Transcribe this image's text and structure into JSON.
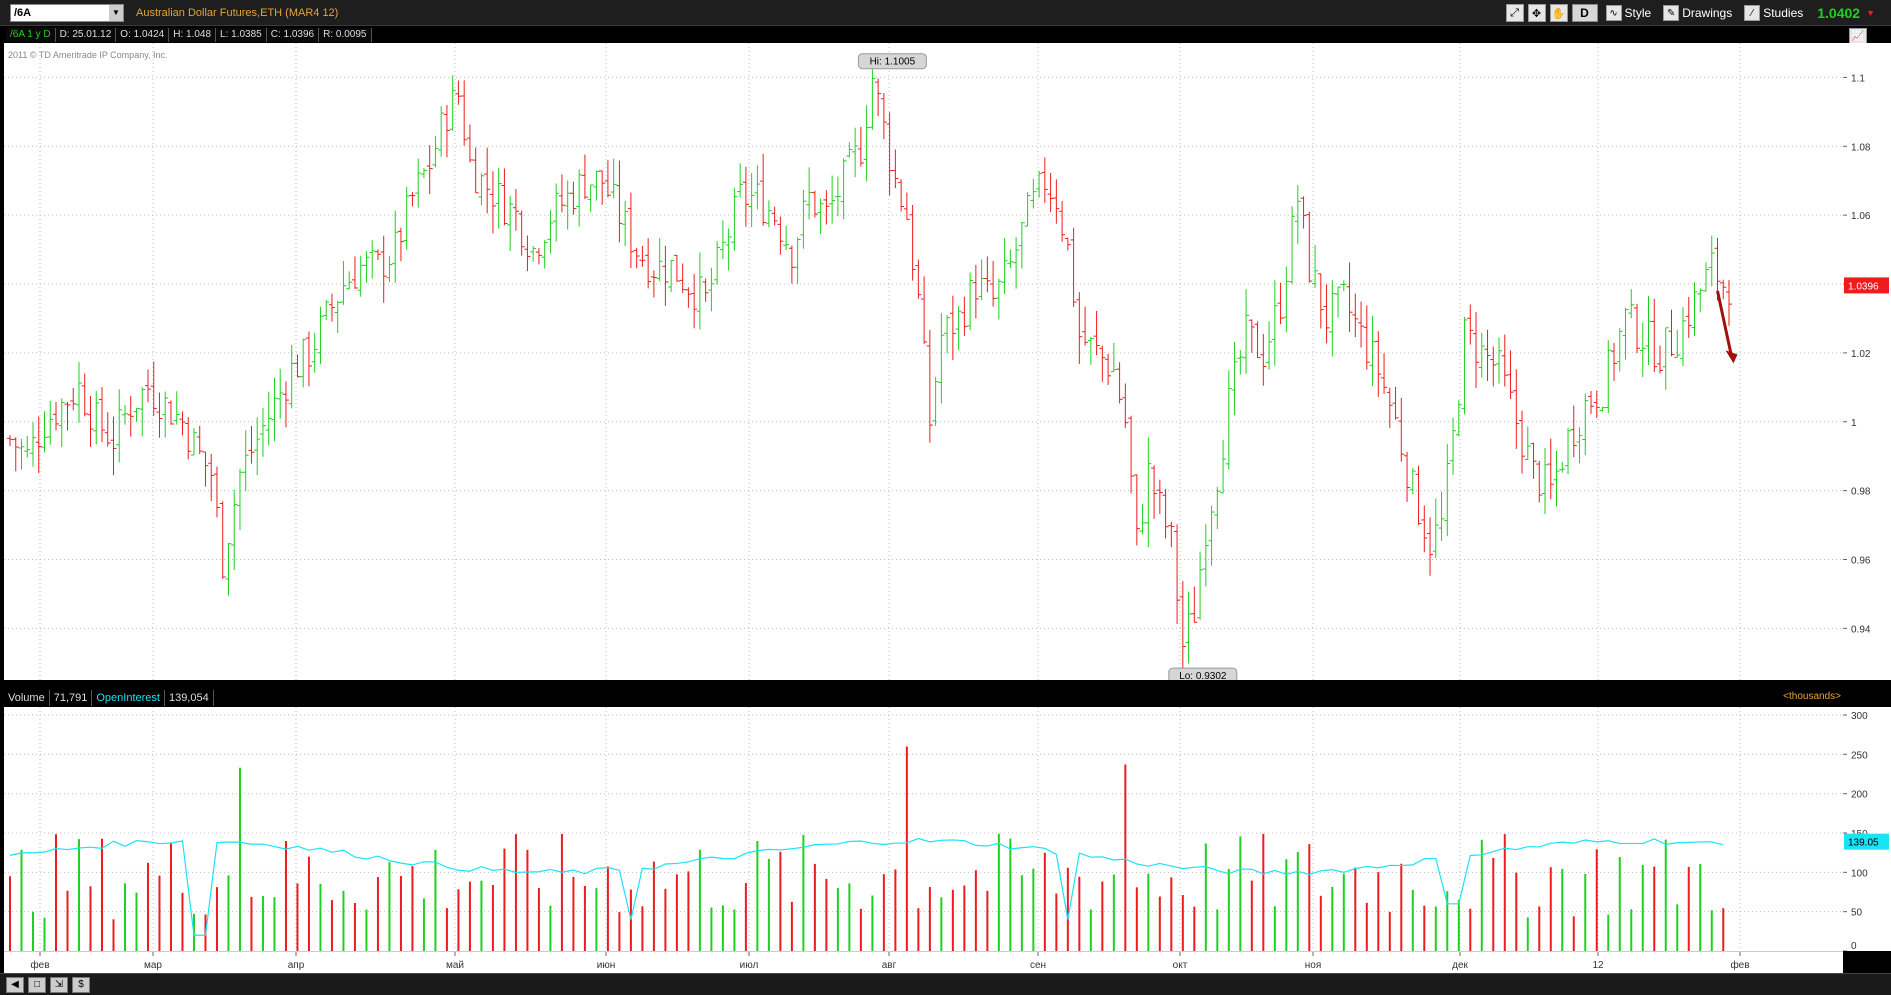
{
  "toolbar": {
    "symbol": "/6A",
    "description": "Australian Dollar Futures,ETH (MAR4 12)",
    "aggregation": "D",
    "style_label": "Style",
    "drawings_label": "Drawings",
    "studies_label": "Studies",
    "last_price": "1.0402",
    "price_change_icon": "down-arrow-icon"
  },
  "infobar": {
    "symbol_period": "/6A 1 y D",
    "date": "D: 25.01.12",
    "open": "O: 1.0424",
    "high": "H: 1.048",
    "low": "L: 1.0385",
    "close": "C: 1.0396",
    "range": "R: 0.0095"
  },
  "copyright": "2011 © TD Ameritrade IP Company, Inc.",
  "volume_header": {
    "volume_label": "Volume",
    "volume_value": "71,791",
    "oi_label": "OpenInterest",
    "oi_value": "139,054",
    "units": "<thousands>"
  },
  "colors": {
    "up": "#1fd11f",
    "down": "#ee1c1c",
    "oi_line": "#19e3f5",
    "grid": "#bdbdbd",
    "arrow": "#a10f0f"
  },
  "chart_data": [
    {
      "type": "ohlc",
      "title": "",
      "ylim": [
        0.925,
        1.11
      ],
      "y_ticks": [
        "1.1",
        "1.08",
        "1.06",
        "1.04",
        "1.02",
        "1",
        "0.98",
        "0.96",
        "0.94"
      ],
      "current_price_label": "1.0396",
      "hi_label": "Hi: 1.1005",
      "lo_label": "Lo: 0.9302",
      "x_labels": [
        "фев",
        "мар",
        "апр",
        "май",
        "июн",
        "июл",
        "авг",
        "сен",
        "окт",
        "ноя",
        "дек",
        "12",
        "фев"
      ],
      "anchors": [
        [
          0,
          0.995
        ],
        [
          3,
          0.99
        ],
        [
          6,
          1.0
        ],
        [
          9,
          1.005
        ],
        [
          12,
          1.01
        ],
        [
          15,
          1.0
        ],
        [
          18,
          0.995
        ],
        [
          21,
          1.005
        ],
        [
          24,
          1.01
        ],
        [
          27,
          1.005
        ],
        [
          30,
          1.0
        ],
        [
          33,
          0.99
        ],
        [
          35,
          0.985
        ],
        [
          37,
          0.96
        ],
        [
          40,
          0.985
        ],
        [
          43,
          0.995
        ],
        [
          46,
          1.005
        ],
        [
          49,
          1.015
        ],
        [
          52,
          1.02
        ],
        [
          55,
          1.03
        ],
        [
          58,
          1.04
        ],
        [
          61,
          1.045
        ],
        [
          64,
          1.045
        ],
        [
          67,
          1.05
        ],
        [
          70,
          1.065
        ],
        [
          73,
          1.075
        ],
        [
          76,
          1.09
        ],
        [
          78,
          1.095
        ],
        [
          80,
          1.075
        ],
        [
          82,
          1.07
        ],
        [
          85,
          1.065
        ],
        [
          88,
          1.06
        ],
        [
          91,
          1.05
        ],
        [
          94,
          1.06
        ],
        [
          97,
          1.065
        ],
        [
          100,
          1.07
        ],
        [
          103,
          1.07
        ],
        [
          106,
          1.06
        ],
        [
          109,
          1.05
        ],
        [
          112,
          1.045
        ],
        [
          115,
          1.045
        ],
        [
          118,
          1.04
        ],
        [
          121,
          1.035
        ],
        [
          124,
          1.05
        ],
        [
          127,
          1.065
        ],
        [
          130,
          1.065
        ],
        [
          133,
          1.06
        ],
        [
          136,
          1.05
        ],
        [
          139,
          1.065
        ],
        [
          142,
          1.06
        ],
        [
          145,
          1.07
        ],
        [
          148,
          1.08
        ],
        [
          150,
          1.1
        ],
        [
          152,
          1.085
        ],
        [
          154,
          1.07
        ],
        [
          156,
          1.06
        ],
        [
          158,
          1.035
        ],
        [
          160,
          1.0
        ],
        [
          162,
          1.025
        ],
        [
          165,
          1.03
        ],
        [
          168,
          1.04
        ],
        [
          171,
          1.035
        ],
        [
          174,
          1.045
        ],
        [
          177,
          1.06
        ],
        [
          180,
          1.07
        ],
        [
          182,
          1.065
        ],
        [
          184,
          1.05
        ],
        [
          186,
          1.025
        ],
        [
          189,
          1.02
        ],
        [
          192,
          1.015
        ],
        [
          194,
          1.0
        ],
        [
          196,
          0.965
        ],
        [
          198,
          0.985
        ],
        [
          200,
          0.975
        ],
        [
          202,
          0.965
        ],
        [
          204,
          0.935
        ],
        [
          206,
          0.945
        ],
        [
          208,
          0.97
        ],
        [
          210,
          0.985
        ],
        [
          212,
          1.005
        ],
        [
          215,
          1.025
        ],
        [
          218,
          1.02
        ],
        [
          221,
          1.035
        ],
        [
          224,
          1.065
        ],
        [
          226,
          1.045
        ],
        [
          229,
          1.03
        ],
        [
          232,
          1.035
        ],
        [
          235,
          1.025
        ],
        [
          238,
          1.015
        ],
        [
          241,
          1.0
        ],
        [
          244,
          0.98
        ],
        [
          247,
          0.965
        ],
        [
          249,
          0.97
        ],
        [
          251,
          0.995
        ],
        [
          253,
          1.025
        ],
        [
          256,
          1.02
        ],
        [
          259,
          1.015
        ],
        [
          262,
          1.0
        ],
        [
          265,
          0.985
        ],
        [
          268,
          0.98
        ],
        [
          271,
          0.995
        ],
        [
          274,
          1.005
        ],
        [
          277,
          1.01
        ],
        [
          279,
          1.02
        ],
        [
          281,
          1.03
        ],
        [
          284,
          1.025
        ],
        [
          287,
          1.02
        ],
        [
          290,
          1.025
        ],
        [
          293,
          1.035
        ],
        [
          296,
          1.045
        ],
        [
          298,
          1.04
        ]
      ],
      "volume": {
        "y_ticks": [
          "300",
          "250",
          "200",
          "150",
          "100",
          "50",
          "0"
        ],
        "ylim": [
          0,
          300
        ],
        "oi_label": "139.05",
        "spikes": [
          [
            40,
            233
          ],
          [
            41,
            190
          ],
          [
            153,
            270
          ],
          [
            155,
            290
          ],
          [
            156,
            260
          ],
          [
            194,
            237
          ],
          [
            199,
            220
          ],
          [
            205,
            180
          ]
        ]
      }
    }
  ]
}
